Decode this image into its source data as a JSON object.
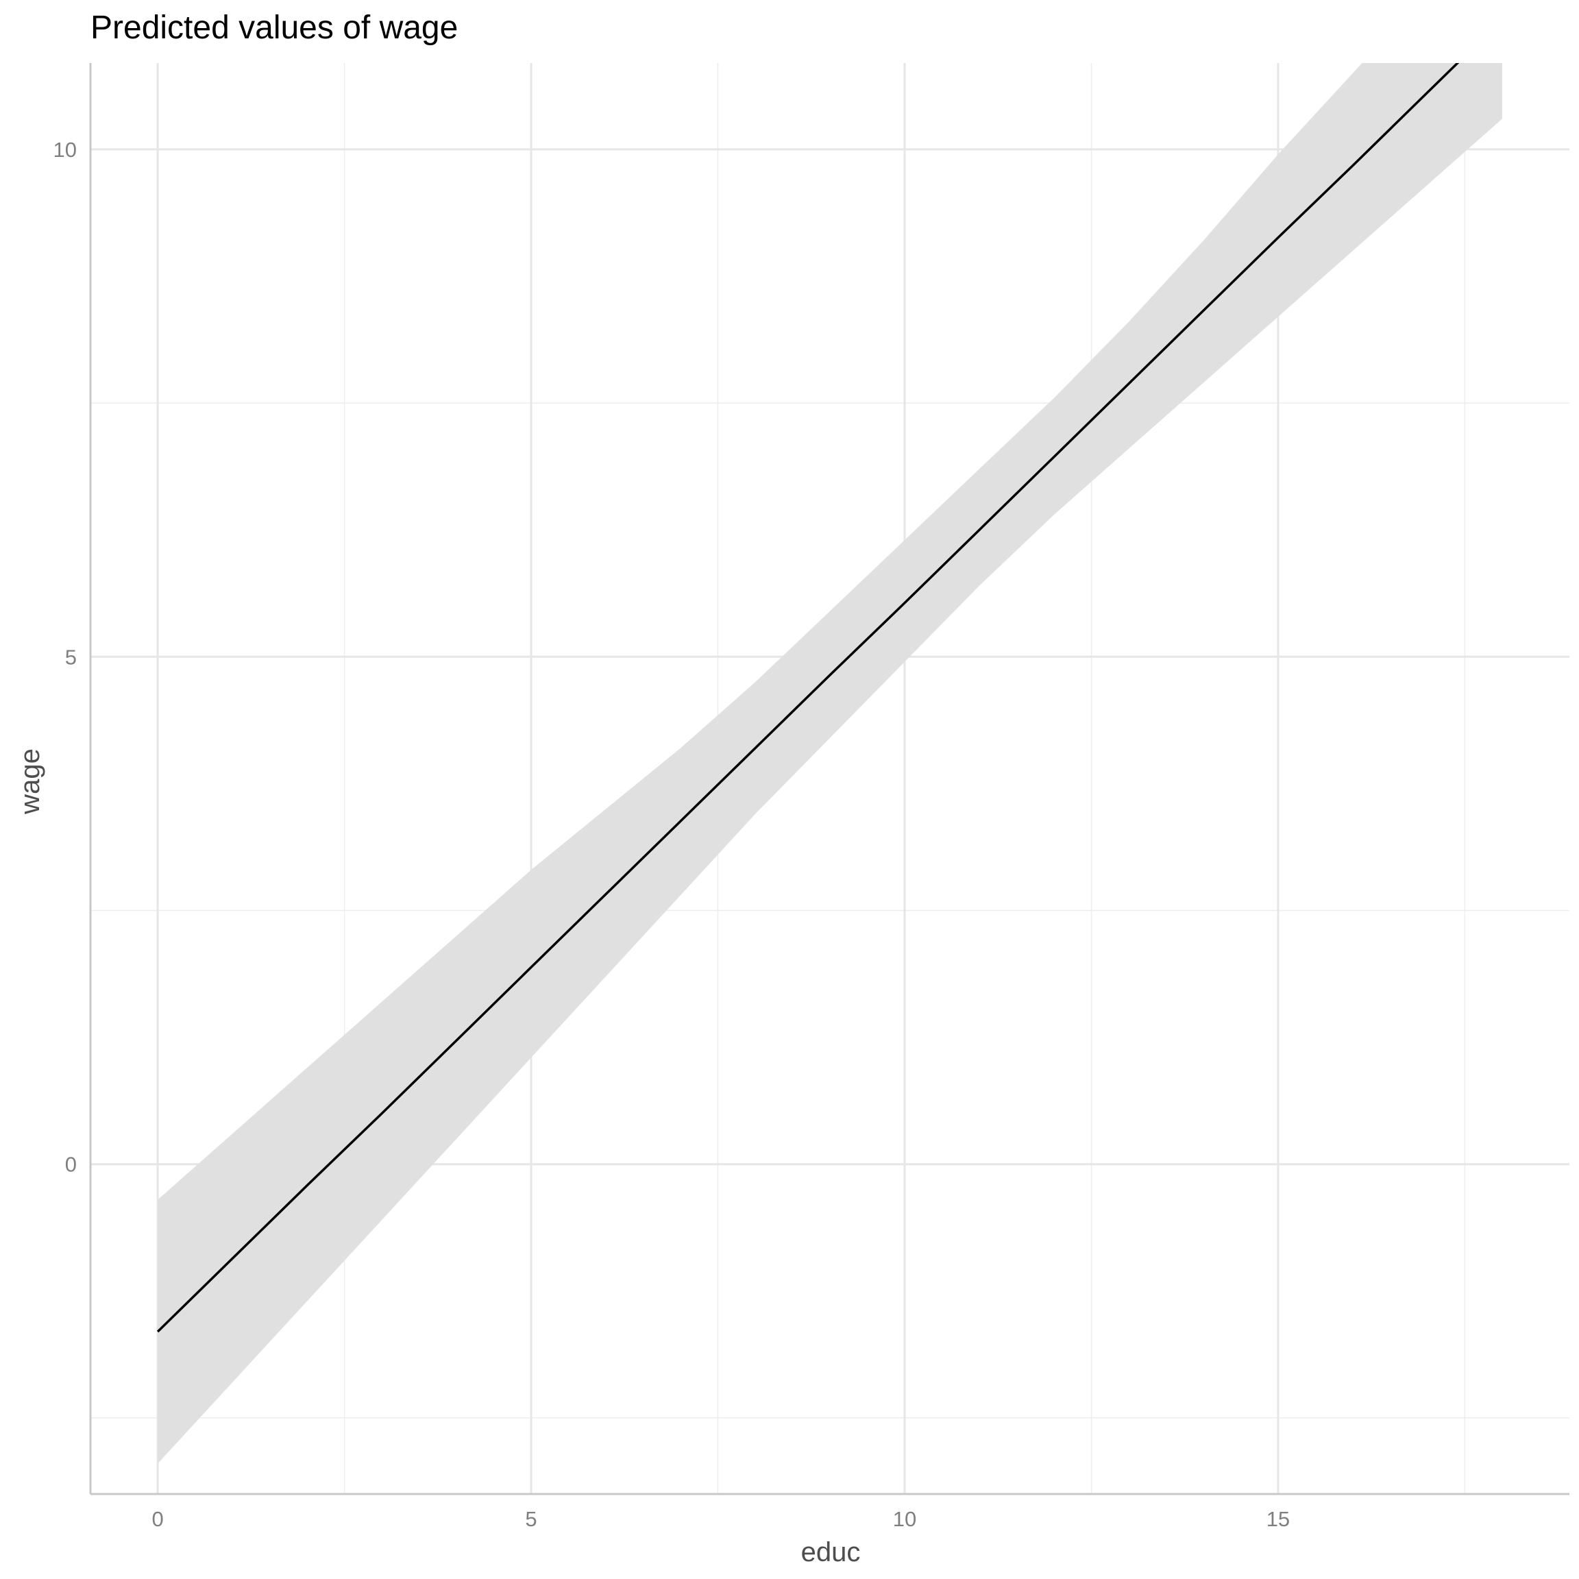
{
  "chart_data": {
    "type": "line",
    "title": "Predicted values of wage",
    "xlabel": "educ",
    "ylabel": "wage",
    "xlim": [
      -0.9,
      18.9
    ],
    "ylim": [
      -3.25,
      10.85
    ],
    "x_ticks": [
      0,
      5,
      10,
      15
    ],
    "x_tick_labels": [
      "0",
      "5",
      "10",
      "15"
    ],
    "x_minor_ticks": [
      2.5,
      7.5,
      12.5,
      17.5
    ],
    "y_ticks": [
      0,
      5,
      10
    ],
    "y_tick_labels": [
      "0",
      "5",
      "10"
    ],
    "y_minor_ticks": [
      -2.5,
      2.5,
      7.5
    ],
    "grid": true,
    "legend": "none",
    "line_color": "#000000",
    "band_color": "#e0e0e0",
    "series": [
      {
        "x": [
          0,
          1,
          2,
          3,
          4,
          5,
          6,
          7,
          8,
          9,
          10,
          11,
          12,
          13,
          14,
          15,
          16,
          17,
          18
        ],
        "y": [
          -1.65,
          -0.93,
          -0.21,
          0.5,
          1.22,
          1.94,
          2.66,
          3.38,
          4.1,
          4.82,
          5.53,
          6.25,
          6.97,
          7.69,
          8.41,
          9.13,
          9.84,
          10.56,
          11.28
        ],
        "ci_low": [
          -2.95,
          -2.15,
          -1.35,
          -0.55,
          0.25,
          1.05,
          1.85,
          2.65,
          3.45,
          4.2,
          4.95,
          5.7,
          6.4,
          7.05,
          7.7,
          8.35,
          9.0,
          9.65,
          10.3
        ],
        "ci_high": [
          -0.35,
          0.3,
          0.95,
          1.6,
          2.25,
          2.9,
          3.5,
          4.1,
          4.75,
          5.45,
          6.15,
          6.85,
          7.55,
          8.3,
          9.1,
          9.95,
          10.75,
          11.55,
          12.35
        ]
      }
    ]
  }
}
